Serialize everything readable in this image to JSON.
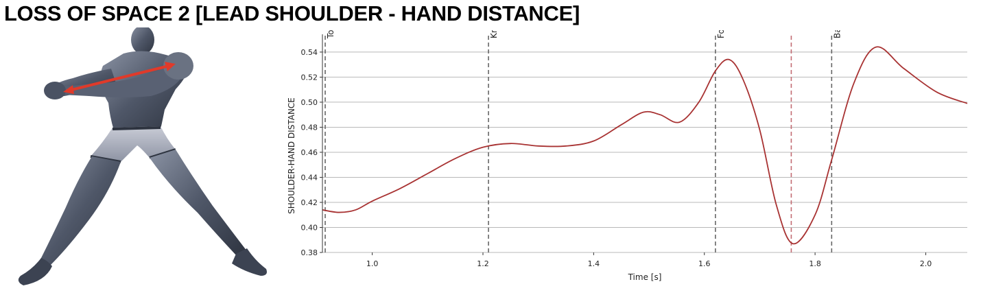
{
  "page": {
    "title": "LOSS OF SPACE 2 [LEAD SHOULDER - HAND DISTANCE]"
  },
  "figure": {
    "icon": "human-figure-illustration",
    "arrow_color": "#e03a2a",
    "body_color": "#4a5263"
  },
  "chart_data": {
    "type": "line",
    "title": "",
    "xlabel": "Time [s]",
    "ylabel": "SHOULDER-HAND DISTANCE",
    "xlim": [
      0.91,
      2.075
    ],
    "ylim": [
      0.38,
      0.552
    ],
    "x_ticks": [
      1.0,
      1.2,
      1.4,
      1.6,
      1.8,
      2.0
    ],
    "x_tick_labels": [
      "1.0",
      "1.2",
      "1.4",
      "1.6",
      "1.8",
      "2.0"
    ],
    "y_ticks": [
      0.38,
      0.4,
      0.42,
      0.44,
      0.46,
      0.48,
      0.5,
      0.52,
      0.54
    ],
    "y_tick_labels": [
      "0.38",
      "0.40",
      "0.42",
      "0.44",
      "0.46",
      "0.48",
      "0.50",
      "0.52",
      "0.54"
    ],
    "grid": "horizontal",
    "series": [
      {
        "color": "#a83232",
        "points": [
          [
            0.91,
            0.414
          ],
          [
            0.94,
            0.412
          ],
          [
            0.97,
            0.414
          ],
          [
            1.0,
            0.421
          ],
          [
            1.05,
            0.431
          ],
          [
            1.1,
            0.443
          ],
          [
            1.15,
            0.455
          ],
          [
            1.2,
            0.464
          ],
          [
            1.25,
            0.467
          ],
          [
            1.3,
            0.465
          ],
          [
            1.35,
            0.465
          ],
          [
            1.4,
            0.469
          ],
          [
            1.45,
            0.482
          ],
          [
            1.49,
            0.492
          ],
          [
            1.52,
            0.49
          ],
          [
            1.555,
            0.484
          ],
          [
            1.59,
            0.5
          ],
          [
            1.62,
            0.525
          ],
          [
            1.645,
            0.534
          ],
          [
            1.67,
            0.518
          ],
          [
            1.7,
            0.478
          ],
          [
            1.73,
            0.418
          ],
          [
            1.76,
            0.387
          ],
          [
            1.8,
            0.41
          ],
          [
            1.83,
            0.454
          ],
          [
            1.87,
            0.515
          ],
          [
            1.91,
            0.544
          ],
          [
            1.96,
            0.527
          ],
          [
            2.02,
            0.508
          ],
          [
            2.075,
            0.499
          ]
        ]
      }
    ],
    "events": [
      {
        "label": "Toe Off",
        "x": 0.915,
        "color": "#666666"
      },
      {
        "label": "Knee High",
        "x": 1.21,
        "color": "#666666"
      },
      {
        "label": "Foot Contact",
        "x": 1.62,
        "color": "#666666"
      },
      {
        "label": "",
        "x": 1.757,
        "color": "#c26b73"
      },
      {
        "label": "Ball Impact",
        "x": 1.83,
        "color": "#666666"
      }
    ]
  }
}
